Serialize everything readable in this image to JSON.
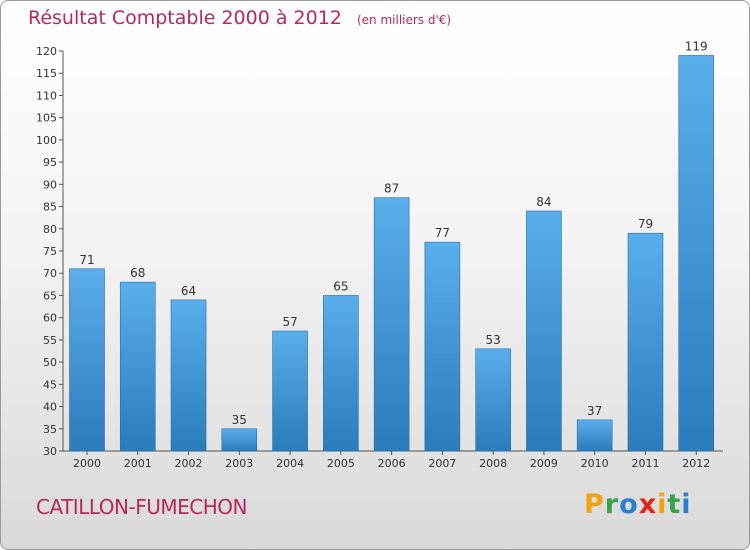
{
  "chart_data": {
    "type": "bar",
    "title": "Résultat Comptable 2000 à 2012",
    "unit_note": "(en milliers d'€)",
    "categories": [
      "2000",
      "2001",
      "2002",
      "2003",
      "2004",
      "2005",
      "2006",
      "2007",
      "2008",
      "2009",
      "2010",
      "2011",
      "2012"
    ],
    "values": [
      71,
      68,
      64,
      35,
      57,
      65,
      87,
      77,
      53,
      84,
      37,
      79,
      119
    ],
    "ylim": [
      30,
      120
    ],
    "yticks": [
      30,
      35,
      40,
      45,
      50,
      55,
      60,
      65,
      70,
      75,
      80,
      85,
      90,
      95,
      100,
      105,
      110,
      115,
      120
    ],
    "xlabel": "",
    "ylabel": "",
    "grid": false,
    "bar_color": "#4a9fdd"
  },
  "footer": {
    "commune": "CATILLON-FUMECHON",
    "brand_letters": [
      "P",
      "r",
      "o",
      "x",
      "i",
      "t",
      "i"
    ],
    "brand_colors": [
      "#f2a20c",
      "#37a44a",
      "#2a7fd0",
      "#e2231a",
      "#f2a20c",
      "#37a44a",
      "#2a7fd0"
    ]
  },
  "colors": {
    "title": "#b5285e",
    "axis": "#555555"
  }
}
